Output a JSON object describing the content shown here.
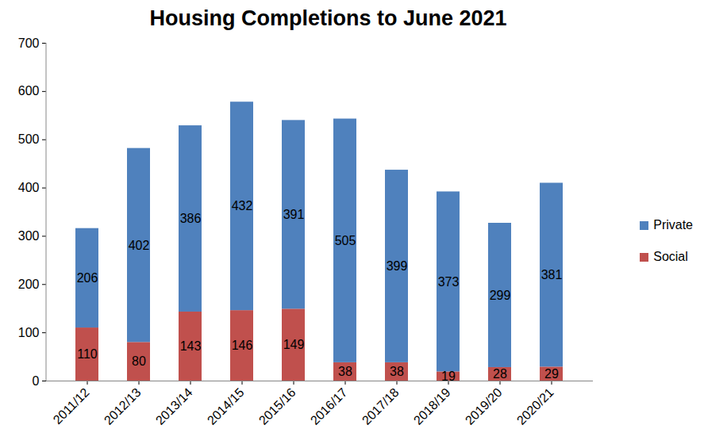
{
  "chart_data": {
    "type": "bar",
    "title": "Housing Completions to June 2021",
    "categories": [
      "2011/12",
      "2012/13",
      "2013/14",
      "2014/15",
      "2015/16",
      "2016/17",
      "2017/18",
      "2018/19",
      "2019/20",
      "2020/21"
    ],
    "series": [
      {
        "name": "Private",
        "color": "#4f81bd",
        "values": [
          206,
          402,
          386,
          432,
          391,
          505,
          399,
          373,
          299,
          381
        ]
      },
      {
        "name": "Social",
        "color": "#c0504d",
        "values": [
          110,
          80,
          143,
          146,
          149,
          38,
          38,
          19,
          28,
          29
        ]
      }
    ],
    "stacked": true,
    "data_labels": true,
    "grid": false,
    "legend": "right",
    "ylim": [
      0,
      700
    ],
    "yticks": [
      0,
      100,
      200,
      300,
      400,
      500,
      600,
      700
    ]
  }
}
